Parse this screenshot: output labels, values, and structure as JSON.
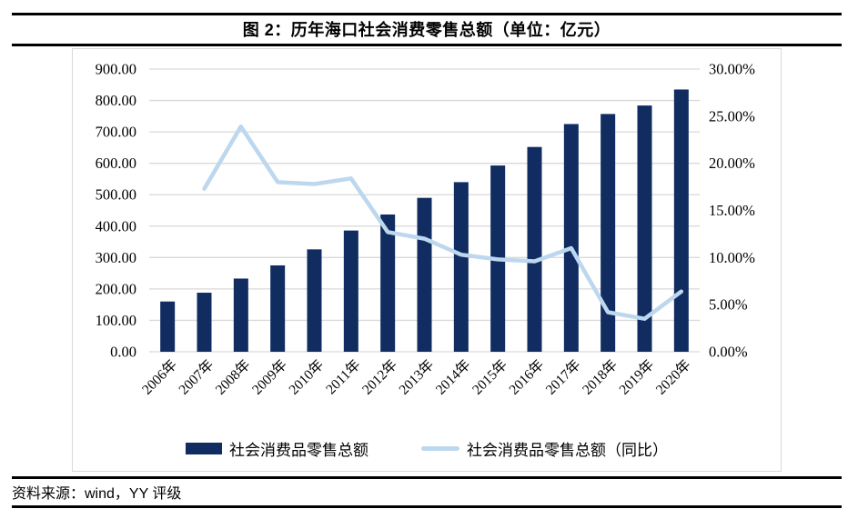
{
  "header": {
    "title": "图 2：历年海口社会消费零售总额（单位：亿元）"
  },
  "footer": {
    "source": "资料来源：wind，YY 评级"
  },
  "chart_data": {
    "type": "bar",
    "subtype": "bar+line combo",
    "title": "历年海口社会消费零售总额（单位：亿元）",
    "categories": [
      "2006年",
      "2007年",
      "2008年",
      "2009年",
      "2010年",
      "2011年",
      "2012年",
      "2013年",
      "2014年",
      "2015年",
      "2016年",
      "2017年",
      "2018年",
      "2019年",
      "2020年"
    ],
    "series": [
      {
        "name": "社会消费品零售总额",
        "type": "bar",
        "axis": "left",
        "color": "#112c61",
        "values": [
          160,
          188,
          233,
          275,
          326,
          386,
          437,
          490,
          540,
          593,
          652,
          725,
          757,
          784,
          835
        ]
      },
      {
        "name": "社会消费品零售总额（同比）",
        "type": "line",
        "axis": "right",
        "color": "#bdd7ee",
        "values": [
          null,
          17.3,
          23.9,
          18.0,
          17.8,
          18.4,
          12.7,
          12.0,
          10.3,
          9.8,
          9.6,
          11.0,
          4.2,
          3.5,
          6.4
        ]
      }
    ],
    "left_axis": {
      "min": 0,
      "max": 900,
      "step": 100,
      "decimals": 2,
      "suffix": ""
    },
    "right_axis": {
      "min": 0,
      "max": 30,
      "step": 5,
      "decimals": 2,
      "suffix": "%"
    },
    "grid": true,
    "grid_color": "#d9d9d9",
    "legend_position": "bottom"
  }
}
